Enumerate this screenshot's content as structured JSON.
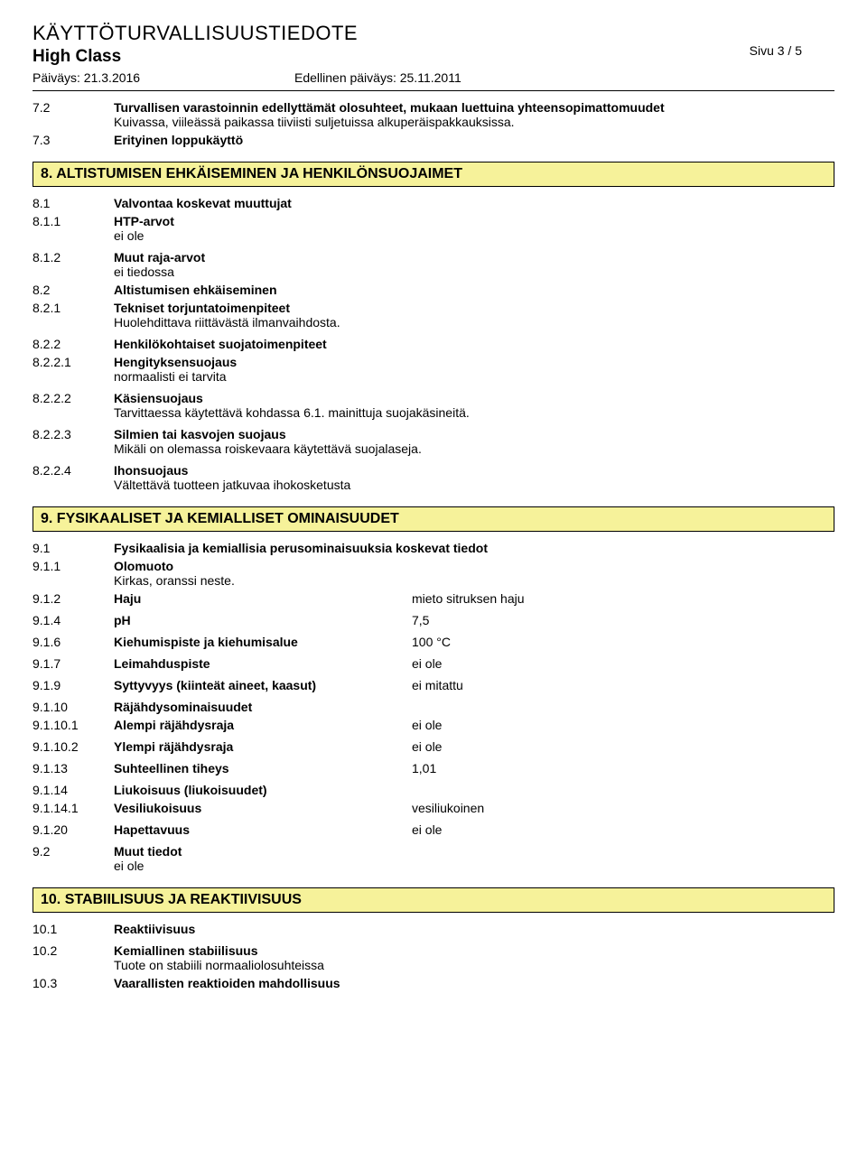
{
  "header": {
    "title": "KÄYTTÖTURVALLISUUSTIEDOTE",
    "subtitle": "High Class",
    "date1_label": "Päiväys: 21.3.2016",
    "date2_label": "Edellinen päiväys: 25.11.2011",
    "page": "Sivu 3 / 5"
  },
  "s7": {
    "n72": "7.2",
    "t72a": "Turvallisen varastoinnin edellyttämät olosuhteet, mukaan luettuina yhteensopimattomuudet",
    "t72b": "Kuivassa, viileässä paikassa tiiviisti suljetuissa alkuperäispakkauksissa.",
    "n73": "7.3",
    "t73": "Erityinen loppukäyttö"
  },
  "band8": "8. ALTISTUMISEN EHKÄISEMINEN JA HENKILÖNSUOJAIMET",
  "s8": {
    "n81": "8.1",
    "t81": "Valvontaa koskevat muuttujat",
    "n811": "8.1.1",
    "t811a": "HTP-arvot",
    "t811b": "ei ole",
    "n812": "8.1.2",
    "t812a": "Muut raja-arvot",
    "t812b": "ei tiedossa",
    "n82": "8.2",
    "t82": "Altistumisen ehkäiseminen",
    "n821": "8.2.1",
    "t821a": "Tekniset torjuntatoimenpiteet",
    "t821b": "Huolehdittava riittävästä ilmanvaihdosta.",
    "n822": "8.2.2",
    "t822": "Henkilökohtaiset suojatoimenpiteet",
    "n8221": "8.2.2.1",
    "t8221a": "Hengityksensuojaus",
    "t8221b": "normaalisti ei tarvita",
    "n8222": "8.2.2.2",
    "t8222a": "Käsiensuojaus",
    "t8222b": "Tarvittaessa käytettävä kohdassa 6.1. mainittuja suojakäsineitä.",
    "n8223": "8.2.2.3",
    "t8223a": "Silmien tai kasvojen suojaus",
    "t8223b": "Mikäli on olemassa roiskevaara käytettävä suojalaseja.",
    "n8224": "8.2.2.4",
    "t8224a": "Ihonsuojaus",
    "t8224b": "Vältettävä tuotteen jatkuvaa ihokosketusta"
  },
  "band9": "9. FYSIKAALISET JA KEMIALLISET OMINAISUUDET",
  "s9": {
    "n91": "9.1",
    "t91": "Fysikaalisia ja kemiallisia perusominaisuuksia koskevat tiedot",
    "n911": "9.1.1",
    "t911a": "Olomuoto",
    "t911b": "Kirkas, oranssi neste.",
    "n912": "9.1.2",
    "l912": "Haju",
    "v912": "mieto sitruksen haju",
    "n914": "9.1.4",
    "l914": "pH",
    "v914": "7,5",
    "n916": "9.1.6",
    "l916": "Kiehumispiste ja kiehumisalue",
    "v916": "100 °C",
    "n917": "9.1.7",
    "l917": "Leimahduspiste",
    "v917": "ei ole",
    "n919": "9.1.9",
    "l919": "Syttyvyys (kiinteät aineet, kaasut)",
    "v919": "ei mitattu",
    "n9110": "9.1.10",
    "t9110": "Räjähdysominaisuudet",
    "n91101": "9.1.10.1",
    "l91101": "Alempi räjähdysraja",
    "v91101": "ei ole",
    "n91102": "9.1.10.2",
    "l91102": "Ylempi räjähdysraja",
    "v91102": "ei ole",
    "n9113": "9.1.13",
    "l9113": "Suhteellinen tiheys",
    "v9113": "1,01",
    "n9114": "9.1.14",
    "t9114": "Liukoisuus (liukoisuudet)",
    "n91141": "9.1.14.1",
    "l91141": "Vesiliukoisuus",
    "v91141": "vesiliukoinen",
    "n9120": "9.1.20",
    "l9120": "Hapettavuus",
    "v9120": "ei ole",
    "n92": "9.2",
    "t92a": "Muut tiedot",
    "t92b": "ei ole"
  },
  "band10": "10. STABIILISUUS JA REAKTIIVISUUS",
  "s10": {
    "n101": "10.1",
    "t101": "Reaktiivisuus",
    "n102": "10.2",
    "t102a": "Kemiallinen stabiilisuus",
    "t102b": "Tuote on stabiili normaaliolosuhteissa",
    "n103": "10.3",
    "t103": "Vaarallisten reaktioiden mahdollisuus"
  }
}
